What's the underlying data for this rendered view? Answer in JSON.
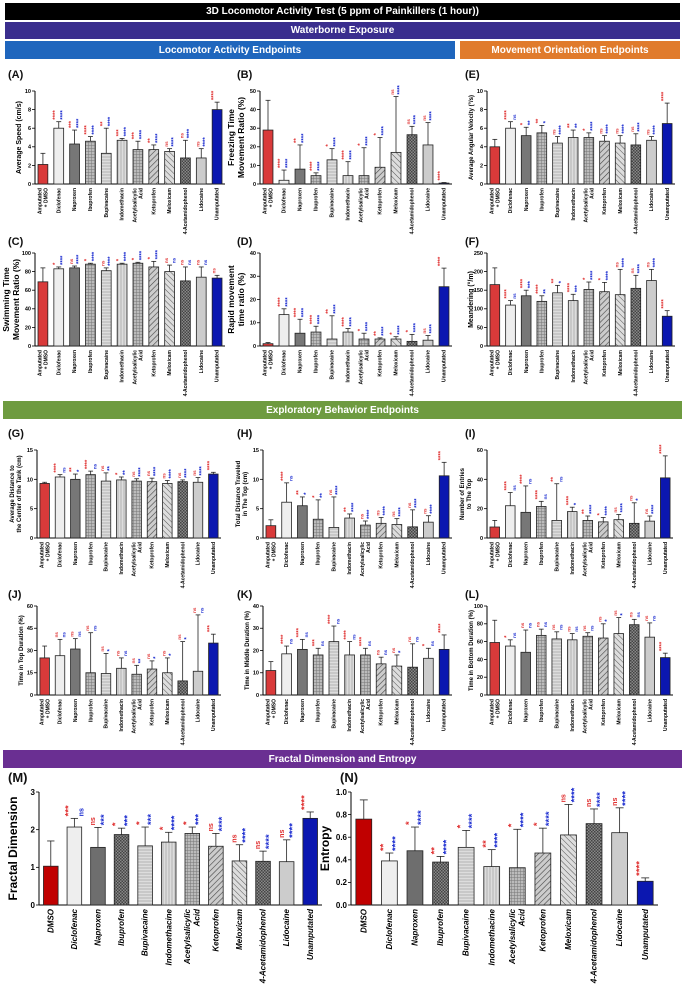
{
  "title": "3D Locomotor Activity Test (5 ppm of Painkillers (1 hour))",
  "sections": {
    "waterborne": "Waterborne Exposure",
    "locomotor": "Locomotor Activity Endpoints",
    "movement": "Movement Orientation Endpoints",
    "exploratory": "Exploratory Behavior Endpoints",
    "fractal": "Fractal Dimension and Entropy"
  },
  "colors": {
    "title_bar": "#000000",
    "waterborne": "#3a2e8e",
    "locomotor": "#1f66bd",
    "movement": "#e07b2c",
    "exploratory": "#6e9b40",
    "fractal": "#6a2f92",
    "amputated": "#d93a3a",
    "unamputated": "#0b17b0",
    "sig_vs_amputated": "#e03030",
    "sig_vs_unamputated": "#1a2bd0"
  },
  "chart_data": [
    {
      "panel": "(A)",
      "type": "bar",
      "ylabel": "Average Speed (cm/s)",
      "ylim": [
        0,
        10
      ],
      "yticks": [
        "0",
        "2",
        "4",
        "6",
        "8",
        "10"
      ],
      "categories": [
        "Amputated + DMSO",
        "Diclofenac",
        "Naproxen",
        "Ibuprofen",
        "Bupivacaine",
        "Indomethacin",
        "Acetylsalicylic Acid",
        "Ketoprofen",
        "Meloxicam",
        "4-Acetamidophenol",
        "Lidocaine",
        "Unamputated"
      ],
      "values": [
        2.1,
        6.0,
        4.3,
        4.6,
        3.3,
        4.7,
        3.7,
        3.7,
        3.5,
        2.8,
        2.8,
        8.0
      ],
      "errors": [
        1.2,
        0.7,
        1.5,
        0.5,
        2.7,
        0.2,
        0.9,
        0.5,
        0.3,
        1.9,
        1.0,
        0.8
      ],
      "sig_red": [
        "",
        "****",
        "***",
        "****",
        "**",
        "***",
        "***",
        "**",
        "ns",
        "ns",
        "ns",
        "****"
      ],
      "sig_blue": [
        "",
        "****",
        "****",
        "****",
        "****",
        "****",
        "****",
        "****",
        "****",
        "****",
        "****",
        ""
      ]
    },
    {
      "panel": "(B)",
      "type": "bar",
      "ylabel": "Freezing Time\nMovement Ratio (%)",
      "ylim": [
        0,
        50
      ],
      "yticks": [
        "0",
        "10",
        "20",
        "30",
        "40",
        "50"
      ],
      "categories": [
        "Amputated + DMSO",
        "Diclofenac",
        "Naproxen",
        "Ibuprofen",
        "Bupivacaine",
        "Indomethacin",
        "Acetylsalicylic Acid",
        "Ketoprofen",
        "Meloxicam",
        "4-Acetamidophenol",
        "Lidocaine",
        "Unamputated"
      ],
      "values": [
        29,
        2,
        8,
        4.5,
        13,
        4.5,
        4.5,
        9,
        17,
        26.5,
        21,
        0.5
      ],
      "errors": [
        16,
        5.5,
        13,
        1.5,
        6,
        7.5,
        15,
        16,
        30,
        4.5,
        12,
        0.3
      ],
      "sig_red": [
        "",
        "****",
        "**",
        "****",
        "*",
        "****",
        "*",
        "*",
        "ns",
        "ns",
        "ns",
        "****"
      ],
      "sig_blue": [
        "",
        "****",
        "****",
        "****",
        "****",
        "****",
        "****",
        "****",
        "****",
        "****",
        "****",
        ""
      ]
    },
    {
      "panel": "(E)",
      "type": "bar",
      "ylabel": "Average Angular Velocity (°/s)",
      "ylim": [
        0,
        10
      ],
      "yticks": [
        "0",
        "2",
        "4",
        "6",
        "8",
        "10"
      ],
      "categories": [
        "Amputated + DMSO",
        "Diclofenac",
        "Naproxen",
        "Ibuprofen",
        "Bupivacaine",
        "Indomethacin",
        "Acetylsalicylic Acid",
        "Ketoprofen",
        "Meloxicam",
        "4-Acetamidophenol",
        "Lidocaine",
        "Unamputated"
      ],
      "values": [
        4.0,
        6.0,
        5.2,
        5.5,
        4.4,
        5.0,
        5.0,
        4.6,
        4.4,
        4.2,
        4.7,
        6.5
      ],
      "errors": [
        0.8,
        0.7,
        0.9,
        0.8,
        0.7,
        0.8,
        0.5,
        0.6,
        0.8,
        1.2,
        0.4,
        2.2
      ],
      "sig_red": [
        "",
        "****",
        "*",
        "**",
        "ns",
        "**",
        "*",
        "ns",
        "ns",
        "ns",
        "ns",
        "****"
      ],
      "sig_blue": [
        "",
        "ns",
        "**",
        "*",
        "****",
        "**",
        "****",
        "****",
        "****",
        "****",
        "****",
        ""
      ]
    },
    {
      "panel": "(C)",
      "type": "bar",
      "ylabel": "Swimming Time\nMovement  Ratio (%)",
      "ylim": [
        0,
        100
      ],
      "yticks": [
        "0",
        "20",
        "40",
        "60",
        "80",
        "100"
      ],
      "categories": [
        "Amputated + DMSO",
        "Diclofenac",
        "Naproxen",
        "Ibuprofen",
        "Bupivacaine",
        "Indomethacin",
        "Acetylsalicylic Acid",
        "Ketoprofen",
        "Meloxicam",
        "4-Acetamidophenol",
        "Lidocaine",
        "Unamputated"
      ],
      "values": [
        69,
        83,
        84,
        88,
        81,
        88,
        89,
        85,
        80,
        70,
        74,
        73
      ],
      "errors": [
        15,
        2,
        2,
        1,
        3,
        1,
        1,
        6,
        7,
        15,
        11,
        3
      ],
      "sig_red": [
        "",
        "*",
        "ns",
        "*",
        "ns",
        "*",
        "*",
        "*",
        "ns",
        "ns",
        "ns",
        "ns"
      ],
      "sig_blue": [
        "",
        "****",
        "****",
        "****",
        "****",
        "****",
        "****",
        "****",
        "ns",
        "ns",
        "ns",
        ""
      ]
    },
    {
      "panel": "(D)",
      "type": "bar",
      "ylabel": "Rapid movement\ntime ratio (%)",
      "ylim": [
        0,
        40
      ],
      "yticks": [
        "0",
        "10",
        "20",
        "30",
        "40"
      ],
      "categories": [
        "Amputated + DMSO",
        "Diclofenac",
        "Naproxen",
        "Ibuprofen",
        "Bupivacaine",
        "Indomethacin",
        "Acetylsalicylic Acid",
        "Ketoprofen",
        "Meloxicam",
        "4-Acetamidophenol",
        "Lidocaine",
        "Unamputated"
      ],
      "values": [
        1,
        13.5,
        5.5,
        6,
        3,
        6,
        3,
        3,
        3,
        2,
        2.5,
        25.5
      ],
      "errors": [
        0.5,
        2.5,
        6,
        2.5,
        10,
        1.5,
        2.5,
        0.5,
        1,
        3,
        2,
        8
      ],
      "sig_red": [
        "",
        "****",
        "****",
        "****",
        "**",
        "****",
        "*",
        "**",
        "*",
        "*",
        "ns",
        "****"
      ],
      "sig_blue": [
        "",
        "****",
        "****",
        "****",
        "****",
        "****",
        "****",
        "****",
        "****",
        "****",
        "****",
        ""
      ]
    },
    {
      "panel": "(F)",
      "type": "bar",
      "ylabel": "Meandering (°/m)",
      "ylim": [
        0,
        250
      ],
      "yticks": [
        "0",
        "50",
        "100",
        "150",
        "200",
        "250"
      ],
      "categories": [
        "Amputated + DMSO",
        "Diclofenac",
        "Naproxen",
        "Ibuprofen",
        "Bupivacaine",
        "Indomethacin",
        "Acetylsalicylic Acid",
        "Ketoprofen",
        "Meloxicam",
        "4-Acetamidophenol",
        "Lidocaine",
        "Unamputated"
      ],
      "values": [
        165,
        110,
        135,
        120,
        143,
        122,
        152,
        146,
        138,
        155,
        176,
        80
      ],
      "errors": [
        45,
        12,
        15,
        15,
        20,
        17,
        20,
        25,
        68,
        35,
        30,
        15
      ],
      "sig_red": [
        "",
        "****",
        "****",
        "****",
        "**",
        "****",
        "*",
        "*",
        "ns",
        "ns",
        "ns",
        "****"
      ],
      "sig_blue": [
        "",
        "ns",
        "***",
        "**",
        "*",
        "***",
        "****",
        "****",
        "****",
        "****",
        "****",
        ""
      ]
    },
    {
      "panel": "(G)",
      "type": "bar",
      "ylabel": "Average Distance to\nthe Center of the Tank (cm)",
      "ylim": [
        0,
        15
      ],
      "yticks": [
        "0",
        "5",
        "10",
        "15"
      ],
      "categories": [
        "Amputated + DMSO",
        "Diclofenac",
        "Naproxen",
        "Ibuprofen",
        "Bupivacaine",
        "Indomethacin",
        "Acetylsalicylic Acid",
        "Ketoprofen",
        "Meloxicam",
        "4-Acetamidophenol",
        "Lidocaine",
        "Unamputated"
      ],
      "values": [
        9.3,
        10.4,
        10.0,
        10.8,
        9.7,
        9.9,
        9.7,
        9.6,
        9.3,
        9.6,
        9.5,
        10.9
      ],
      "errors": [
        0.2,
        0.4,
        0.9,
        0.6,
        1.4,
        0.5,
        0.4,
        0.6,
        0.5,
        0.3,
        0.8,
        0.3
      ],
      "sig_red": [
        "",
        "****",
        "**",
        "****",
        "ns",
        "*",
        "ns",
        "ns",
        "ns",
        "ns",
        "ns",
        "****"
      ],
      "sig_blue": [
        "",
        "ns",
        "*",
        "ns",
        "**",
        "**",
        "****",
        "****",
        "****",
        "****",
        "****",
        ""
      ]
    },
    {
      "panel": "(H)",
      "type": "bar",
      "ylabel": "Total Distance Traveled\nin The Top (cm)",
      "ylim": [
        0,
        15
      ],
      "yticks": [
        "0",
        "5",
        "10",
        "15"
      ],
      "categories": [
        "Amputated + DMSO",
        "Diclofenac",
        "Naproxen",
        "Ibuprofen",
        "Bupivacaine",
        "Indomethacin",
        "Acetylsalicylic Acid",
        "Ketoprofen",
        "Meloxicam",
        "4-Acetamidophenol",
        "Lidocaine",
        "Unamputated"
      ],
      "values": [
        2.1,
        6.1,
        5.5,
        3.2,
        1.8,
        3.4,
        2.2,
        2.5,
        2.3,
        1.9,
        2.7,
        10.6
      ],
      "errors": [
        1.0,
        3.3,
        1.5,
        3.3,
        5.2,
        0.7,
        0.7,
        1.0,
        1.0,
        2.9,
        1.1,
        2.3
      ],
      "sig_red": [
        "",
        "****",
        "**",
        "*",
        "ns",
        "**",
        "ns",
        "ns",
        "ns",
        "ns",
        "ns",
        "****"
      ],
      "sig_blue": [
        "",
        "ns",
        "*",
        "**",
        "****",
        "****",
        "****",
        "****",
        "****",
        "****",
        "****",
        ""
      ]
    },
    {
      "panel": "(I)",
      "type": "bar",
      "ylabel": "Number of Entries\nto The Top",
      "ylim": [
        0,
        60
      ],
      "yticks": [
        "0",
        "20",
        "40",
        "60"
      ],
      "categories": [
        "Amputated + DMSO",
        "Diclofenac",
        "Naproxen",
        "Ibuprofen",
        "Bupivacaine",
        "Indomethacin",
        "Acetylsalicylic Acid",
        "Ketoprofen",
        "Meloxicam",
        "4-Acetamidophenol",
        "Lidocaine",
        "Unamputated"
      ],
      "values": [
        7.5,
        22,
        17.5,
        21.5,
        12,
        18,
        12,
        11,
        12.5,
        10,
        11.5,
        41
      ],
      "errors": [
        4.5,
        9,
        18,
        3.5,
        25,
        3,
        3,
        3,
        3.5,
        14,
        3.5,
        15
      ],
      "sig_red": [
        "",
        "****",
        "****",
        "****",
        "**",
        "****",
        "**",
        "*",
        "ns",
        "ns",
        "ns",
        "****"
      ],
      "sig_blue": [
        "",
        "ns",
        "ns",
        "ns",
        "ns",
        "*",
        "****",
        "****",
        "****",
        "*",
        "****",
        ""
      ]
    },
    {
      "panel": "(J)",
      "type": "bar",
      "ylabel": "Time in Top Duration (%)",
      "ylim": [
        0,
        60
      ],
      "yticks": [
        "0",
        "15",
        "30",
        "45",
        "60"
      ],
      "categories": [
        "Amputated + DMSO",
        "Diclofenac",
        "Naproxen",
        "Ibuprofen",
        "Bupivacaine",
        "Indomethacin",
        "Acetylsalicylic Acid",
        "Ketoprofen",
        "Meloxicam",
        "4-Acetamidophenol",
        "Lidocaine",
        "Unamputated"
      ],
      "values": [
        25,
        26.5,
        31,
        15,
        14.5,
        18,
        14,
        17.5,
        15,
        9.5,
        16,
        35
      ],
      "errors": [
        8,
        11,
        7,
        27,
        13.5,
        7,
        6,
        5.5,
        10,
        26.5,
        38,
        6
      ],
      "sig_red": [
        "",
        "ns",
        "ns",
        "ns",
        "ns",
        "ns",
        "ns",
        "ns",
        "ns",
        "ns",
        "ns",
        "***"
      ],
      "sig_blue": [
        "",
        "ns",
        "ns",
        "ns",
        "*",
        "ns",
        "**",
        "*",
        "*",
        "*",
        "ns",
        ""
      ]
    },
    {
      "panel": "(K)",
      "type": "bar",
      "ylabel": "Time in Middle Duration (%)",
      "ylim": [
        0,
        40
      ],
      "yticks": [
        "0",
        "10",
        "20",
        "30",
        "40"
      ],
      "categories": [
        "Amputated + DMSO",
        "Diclofenac",
        "Naproxen",
        "Ibuprofen",
        "Bupivacaine",
        "Indomethacin",
        "Acetylsalicylic Acid",
        "Ketoprofen",
        "Meloxicam",
        "4-Acetamidophenol",
        "Lidocaine",
        "Unamputated"
      ],
      "values": [
        11,
        18.5,
        20.5,
        18,
        24,
        18,
        18,
        14,
        13,
        12.5,
        16.5,
        20.5
      ],
      "errors": [
        4,
        3.5,
        4.5,
        3,
        7,
        6,
        3,
        3,
        5,
        10.5,
        4.5,
        6.5
      ],
      "sig_red": [
        "",
        "****",
        "****",
        "***",
        "****",
        "****",
        "****",
        "ns",
        "ns",
        "ns",
        "*",
        "****"
      ],
      "sig_blue": [
        "",
        "ns",
        "ns",
        "ns",
        "ns",
        "ns",
        "ns",
        "ns",
        "*",
        "ns",
        "ns",
        ""
      ]
    },
    {
      "panel": "(L)",
      "type": "bar",
      "ylabel": "Time in Bottom Duration (%)",
      "ylim": [
        0,
        100
      ],
      "yticks": [
        "0",
        "20",
        "40",
        "60",
        "80",
        "100"
      ],
      "categories": [
        "Amputated + DMSO",
        "Diclofenac",
        "Naproxen",
        "Ibuprofen",
        "Bupivacaine",
        "Indomethacin",
        "Acetylsalicylic Acid",
        "Ketoprofen",
        "Meloxicam",
        "4-Acetamidophenol",
        "Lidocaine",
        "Unamputated"
      ],
      "values": [
        59,
        55,
        48,
        67,
        63,
        62,
        66,
        64,
        69,
        79,
        65,
        42
      ],
      "errors": [
        25,
        7,
        25,
        7,
        8,
        7,
        4,
        16,
        18,
        6,
        16,
        5
      ],
      "sig_red": [
        "",
        "*",
        "ns",
        "ns",
        "ns",
        "ns",
        "ns",
        "ns",
        "ns",
        "ns",
        "ns",
        "****"
      ],
      "sig_blue": [
        "",
        "ns",
        "ns",
        "ns",
        "ns",
        "ns",
        "ns",
        "*",
        "*",
        "ns",
        "ns",
        ""
      ]
    },
    {
      "panel": "(M)",
      "type": "bar",
      "ylabel": "Fractal Dimension",
      "ylim": [
        0,
        3
      ],
      "yticks": [
        "0",
        "1",
        "2",
        "3"
      ],
      "categories": [
        "DMSO",
        "Diclofenac",
        "Naproxen",
        "Ibuprofen",
        "Bupivacaine",
        "Indomethacine",
        "Acetylsalicylic Acid",
        "Ketoprofen",
        "Meloxicam",
        "4-Acetamidophenol",
        "Lidocaine",
        "Unamputated"
      ],
      "values": [
        1.03,
        2.07,
        1.53,
        1.87,
        1.57,
        1.67,
        1.9,
        1.56,
        1.17,
        1.16,
        1.15,
        2.3
      ],
      "errors": [
        0.67,
        0.23,
        0.53,
        0.17,
        0.5,
        0.26,
        0.17,
        0.34,
        0.43,
        0.27,
        0.58,
        0.17
      ],
      "sig_red": [
        "",
        "***",
        "ns",
        "*",
        "*",
        "*",
        "*",
        "ns",
        "ns",
        "ns",
        "ns",
        "****"
      ],
      "sig_blue": [
        "",
        "ns",
        "***",
        "***",
        "***",
        "****",
        "***",
        "****",
        "****",
        "****",
        "****",
        ""
      ]
    },
    {
      "panel": "(N)",
      "type": "bar",
      "ylabel": "Entropy",
      "ylim": [
        0,
        1
      ],
      "yticks": [
        "0.0",
        "0.2",
        "0.4",
        "0.6",
        "0.8",
        "1.0"
      ],
      "categories": [
        "DMSO",
        "Diclofenac",
        "Naproxen",
        "Ibuprofen",
        "Bupivacaine",
        "Indomethacine",
        "Acetylsalicylic Acid",
        "Ketoprofen",
        "Meloxicam",
        "4-Acetamidophenol",
        "Lidocaine",
        "Unamputated"
      ],
      "values": [
        0.76,
        0.39,
        0.48,
        0.38,
        0.51,
        0.34,
        0.33,
        0.46,
        0.62,
        0.72,
        0.64,
        0.21
      ],
      "errors": [
        0.17,
        0.07,
        0.21,
        0.05,
        0.15,
        0.15,
        0.34,
        0.22,
        0.27,
        0.13,
        0.22,
        0.03
      ],
      "sig_red": [
        "",
        "**",
        "*",
        "**",
        "*",
        "**",
        "*",
        "*",
        "ns",
        "ns",
        "ns",
        "****"
      ],
      "sig_blue": [
        "",
        "****",
        "****",
        "****",
        "****",
        "****",
        "****",
        "****",
        "****",
        "****",
        "****",
        ""
      ]
    }
  ]
}
